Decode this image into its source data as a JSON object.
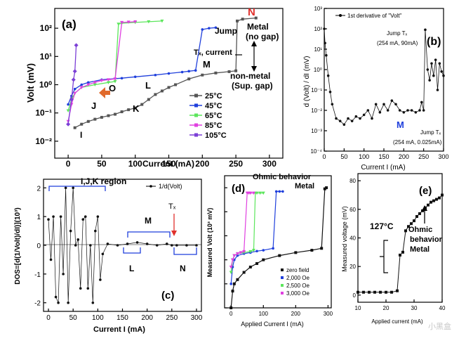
{
  "panel_a": {
    "label": "(a)",
    "ylabel": "Volt (mV)",
    "xlabel": "Current (mA)",
    "x_ticks": [
      "0",
      "50",
      "100",
      "150",
      "200",
      "250",
      "300"
    ],
    "y_ticks": [
      "10²",
      "10¹",
      "10⁰",
      "10⁻¹",
      "10⁻²"
    ],
    "annotations": {
      "I": "I",
      "J": "J",
      "K": "K",
      "L": "L",
      "O": "O",
      "M": "M",
      "N": "N",
      "jump": "Jump",
      "tc_current": "Tₓ, current",
      "metal": "Metal",
      "no_gap": "(no gap)",
      "nonmetal": "non-metal",
      "sup_gap": "(Sup. gap)"
    },
    "legend": [
      "25°C",
      "45°C",
      "65°C",
      "85°C",
      "105°C"
    ],
    "colors": [
      "#555555",
      "#1f3fdc",
      "#5ce65c",
      "#e040e0",
      "#7b3fd6"
    ]
  },
  "panel_b": {
    "label": "(b)",
    "ylabel": "d (Volt) / dI (mV)",
    "xlabel": "Current I (mA)",
    "legend": "1st derivative of \"Volt\"",
    "x_ticks": [
      "0",
      "50",
      "100",
      "150",
      "200",
      "250",
      "300"
    ],
    "y_ticks": [
      "10³",
      "10²",
      "10¹",
      "10⁰",
      "10⁻¹",
      "10⁻²",
      "10⁻³",
      "10⁻⁴"
    ],
    "jump_tc_top": "Jump Tₓ",
    "jump_tc_top_val": "(254 mA, 90mA)",
    "M": "M",
    "jump_tc_bottom": "Jump Tₓ",
    "jump_tc_bottom_val": "(254 mA, 0.025mA)"
  },
  "panel_c": {
    "label": "(c)",
    "ylabel": "DOS=[d(1/Volt)/dI)](10³)",
    "xlabel": "Current I (mA)",
    "legend": "1/d(Volt)",
    "region": "I,J,K region",
    "x_ticks": [
      "0",
      "50",
      "100",
      "150",
      "200",
      "250",
      "300"
    ],
    "y_ticks": [
      "2",
      "1",
      "0",
      "-1",
      "-2"
    ],
    "M": "M",
    "L": "L",
    "N": "N",
    "Tc": "Tₓ"
  },
  "panel_d": {
    "label": "(d)",
    "title1": "Ohmic behavior",
    "title2": "Metal",
    "ylabel": "Measured Volt (10³ mV)",
    "xlabel": "Applied Current I (mA)",
    "x_ticks": [
      "0",
      "100",
      "200",
      "300"
    ],
    "legend": [
      "zero field",
      "2,000 Oe",
      "2,500 Oe",
      "3,000 Oe"
    ],
    "colors": [
      "#111111",
      "#1f3fdc",
      "#5ce65c",
      "#e040e0"
    ]
  },
  "panel_e": {
    "label": "(e)",
    "ylabel": "Measured voltage (mV)",
    "xlabel": "Applied current (mA)",
    "x_ticks": [
      "10",
      "20",
      "30",
      "40"
    ],
    "y_ticks": [
      "0",
      "20",
      "40",
      "60",
      "80"
    ],
    "temp": "127°C",
    "ohmic1": "Ohmic",
    "ohmic2": "behavior",
    "metal": "Metal"
  },
  "watermark": "小黑盒",
  "chart_data": [
    {
      "type": "line",
      "panel": "a",
      "title": "(a)",
      "xlabel": "Current (mA)",
      "ylabel": "Volt (mV)",
      "xlim": [
        -20,
        320
      ],
      "ylim_log10": [
        -2.6,
        2.7
      ],
      "series": [
        {
          "name": "25°C",
          "x": [
            10,
            20,
            30,
            40,
            50,
            60,
            70,
            80,
            90,
            100,
            110,
            120,
            130,
            140,
            150,
            160,
            180,
            200,
            220,
            240,
            250,
            252,
            260,
            280
          ],
          "y": [
            0.03,
            0.04,
            0.05,
            0.06,
            0.07,
            0.08,
            0.09,
            0.11,
            0.13,
            0.15,
            0.2,
            0.3,
            0.45,
            0.6,
            0.8,
            1.0,
            1.6,
            2.2,
            2.6,
            2.9,
            3.1,
            180,
            210,
            230
          ]
        },
        {
          "name": "45°C",
          "x": [
            0,
            5,
            10,
            20,
            30,
            50,
            80,
            100,
            130,
            150,
            170,
            180,
            190,
            200,
            210,
            220
          ],
          "y": [
            0.2,
            0.4,
            0.7,
            1.0,
            1.2,
            1.5,
            1.7,
            1.9,
            2.2,
            2.5,
            2.8,
            3.0,
            3.2,
            90,
            100,
            105
          ]
        },
        {
          "name": "65°C",
          "x": [
            0,
            5,
            10,
            20,
            40,
            60,
            70,
            75,
            80,
            100,
            120,
            140
          ],
          "y": [
            0.12,
            0.3,
            0.5,
            0.8,
            1.0,
            1.2,
            1.3,
            140,
            150,
            160,
            170,
            180
          ]
        },
        {
          "name": "85°C",
          "x": [
            0,
            5,
            10,
            20,
            30,
            40,
            50,
            60,
            70,
            80,
            90,
            100
          ],
          "y": [
            0.05,
            0.2,
            0.5,
            0.8,
            1.0,
            1.2,
            1.4,
            1.5,
            1.6,
            160,
            165,
            170
          ]
        },
        {
          "name": "105°C",
          "x": [
            0,
            5,
            8,
            10,
            12
          ],
          "y": [
            0.04,
            0.3,
            1.5,
            3.0,
            25
          ]
        }
      ]
    },
    {
      "type": "scatter",
      "panel": "b",
      "title": "(b)",
      "xlabel": "Current I (mA)",
      "ylabel": "d (Volt) / dI (mV)",
      "xlim": [
        0,
        300
      ],
      "ylim_log10": [
        -4,
        3
      ],
      "series": [
        {
          "name": "1st derivative of \"Volt\"",
          "x": [
            0,
            2,
            5,
            10,
            15,
            20,
            30,
            40,
            50,
            60,
            70,
            80,
            90,
            100,
            110,
            120,
            130,
            140,
            150,
            160,
            170,
            180,
            190,
            200,
            210,
            220,
            230,
            240,
            245,
            250,
            254,
            260,
            265,
            270,
            275,
            280,
            285,
            290,
            295,
            300
          ],
          "y": [
            100,
            20,
            5,
            0.5,
            0.08,
            0.02,
            0.004,
            0.003,
            0.002,
            0.004,
            0.003,
            0.005,
            0.004,
            0.006,
            0.01,
            0.004,
            0.02,
            0.008,
            0.02,
            0.01,
            0.03,
            0.02,
            0.01,
            0.008,
            0.01,
            0.01,
            0.008,
            0.01,
            0.025,
            0.01,
            90,
            1,
            0.3,
            2,
            0.5,
            3,
            0.1,
            2,
            0.8,
            0.5
          ]
        }
      ]
    },
    {
      "type": "line",
      "panel": "c",
      "title": "(c)",
      "xlabel": "Current I (mA)",
      "ylabel": "DOS=[d(1/Volt)/dI)](10³)",
      "xlim": [
        -10,
        310
      ],
      "ylim": [
        -2.3,
        2.3
      ],
      "series": [
        {
          "name": "1/d(Volt)",
          "x": [
            0,
            5,
            10,
            15,
            20,
            25,
            30,
            35,
            40,
            45,
            50,
            55,
            60,
            65,
            70,
            75,
            80,
            85,
            90,
            95,
            100,
            105,
            110,
            120,
            140,
            160,
            180,
            200,
            220,
            240,
            250,
            260,
            280,
            300
          ],
          "y": [
            0.9,
            -0.5,
            1.0,
            -1.8,
            -2.0,
            1.0,
            -1.0,
            2.0,
            -2.0,
            0.5,
            2.0,
            0.0,
            0.2,
            -1.5,
            0.9,
            1.0,
            -1.5,
            0.0,
            -2.0,
            0.5,
            1.0,
            -1.2,
            -0.3,
            0.05,
            0.0,
            0.05,
            0.1,
            0.05,
            0.0,
            0.05,
            0.0,
            0.0,
            0.0,
            0.0
          ]
        }
      ]
    },
    {
      "type": "line",
      "panel": "d",
      "title": "(d)",
      "xlabel": "Applied Current I (mA)",
      "ylabel": "Measured Volt (10³ mV)",
      "xlim": [
        -20,
        310
      ],
      "ylim_log10": [
        -5,
        0.5
      ],
      "series": [
        {
          "name": "zero field",
          "x": [
            0,
            5,
            10,
            20,
            40,
            60,
            80,
            100,
            150,
            200,
            250,
            280,
            290,
            295
          ],
          "y": [
            1e-05,
            5e-05,
            0.0001,
            0.00015,
            0.0003,
            0.0005,
            0.0007,
            0.001,
            0.0015,
            0.002,
            0.0025,
            0.003,
            0.9,
            1.0
          ]
        },
        {
          "name": "2,000 Oe",
          "x": [
            0,
            5,
            10,
            20,
            40,
            60,
            80,
            100,
            130,
            140,
            150,
            160
          ],
          "y": [
            0.0001,
            0.0005,
            0.001,
            0.0015,
            0.0018,
            0.002,
            0.0023,
            0.0025,
            0.003,
            0.7,
            0.7,
            0.7
          ]
        },
        {
          "name": "2,500 Oe",
          "x": [
            0,
            5,
            10,
            20,
            40,
            60,
            70,
            75,
            80,
            90,
            100
          ],
          "y": [
            0.0003,
            0.001,
            0.0015,
            0.0018,
            0.002,
            0.0022,
            0.0025,
            0.6,
            0.6,
            0.6,
            0.6
          ]
        },
        {
          "name": "3,000 Oe",
          "x": [
            0,
            5,
            10,
            20,
            30,
            40,
            50,
            55,
            60,
            70
          ],
          "y": [
            0.0005,
            0.001,
            0.0015,
            0.0018,
            0.002,
            0.0022,
            0.6,
            0.6,
            0.6,
            0.6
          ]
        }
      ]
    },
    {
      "type": "line",
      "panel": "e",
      "title": "(e)",
      "xlabel": "Applied current (mA)",
      "ylabel": "Measured voltage (mV)",
      "xlim": [
        10,
        40
      ],
      "ylim": [
        -5,
        85
      ],
      "series": [
        {
          "name": "127°C",
          "x": [
            10,
            12,
            14,
            16,
            18,
            20,
            22,
            24,
            25,
            26,
            27,
            28,
            29,
            30,
            31,
            32,
            33,
            34,
            35,
            36,
            37,
            38,
            39,
            40
          ],
          "y": [
            2,
            2,
            2,
            2,
            2,
            2,
            2,
            3,
            28,
            30,
            45,
            48,
            50,
            52,
            55,
            57,
            59,
            61,
            63,
            65,
            66,
            67,
            68,
            70
          ]
        }
      ]
    }
  ]
}
